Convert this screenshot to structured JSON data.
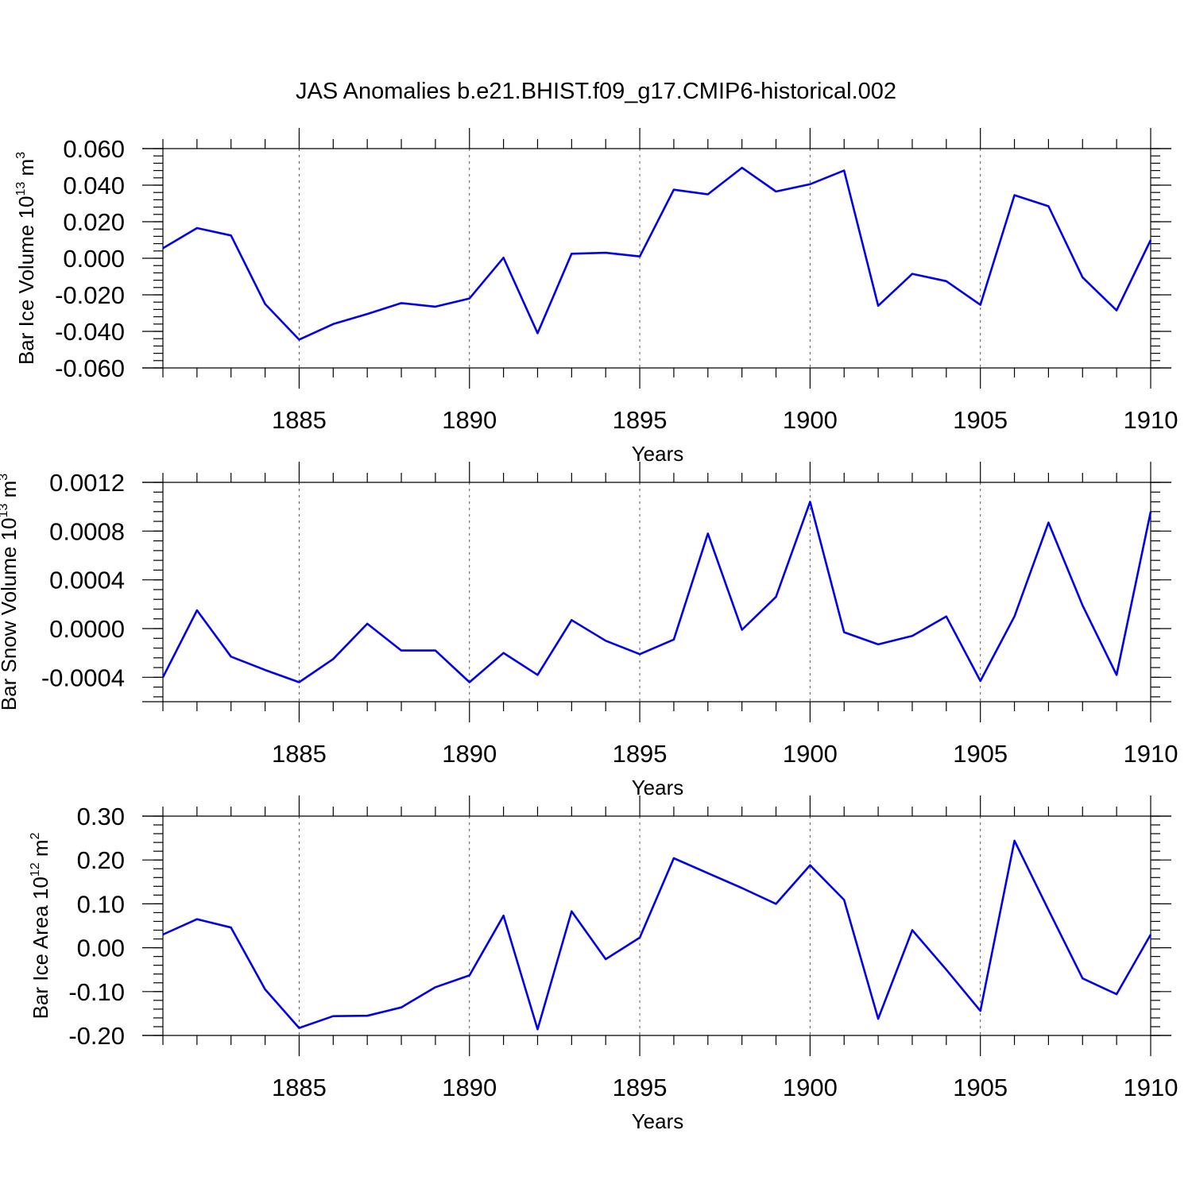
{
  "title": "JAS Anomalies b.e21.BHIST.f09_g17.CMIP6-historical.002",
  "colors": {
    "series": "#0000ee",
    "grid": "#555555",
    "axes": "#000000"
  },
  "chart_data": [
    {
      "type": "line",
      "ylabel_main": "Bar Ice Volume 10",
      "ylabel_exp": "13",
      "ylabel_unit": " m",
      "ylabel_unit_exp": "3",
      "xlabel": "Years",
      "xlim": [
        1881,
        1910
      ],
      "ylim": [
        -0.06,
        0.06
      ],
      "xticks": [
        1885,
        1890,
        1895,
        1900,
        1905,
        1910
      ],
      "xtick_labels": [
        "1885",
        "1890",
        "1895",
        "1900",
        "1905",
        "1910"
      ],
      "yticks": [
        -0.06,
        -0.04,
        -0.02,
        0.0,
        0.02,
        0.04,
        0.06
      ],
      "ytick_labels": [
        "-0.060",
        "-0.040",
        "-0.020",
        "0.000",
        "0.020",
        "0.040",
        "0.060"
      ],
      "grid": "vertical-dashed",
      "x": [
        1881,
        1882,
        1883,
        1884,
        1885,
        1886,
        1887,
        1888,
        1889,
        1890,
        1891,
        1892,
        1893,
        1894,
        1895,
        1896,
        1897,
        1898,
        1899,
        1900,
        1901,
        1902,
        1903,
        1904,
        1905,
        1906,
        1907,
        1908,
        1909,
        1910
      ],
      "values": [
        0.0055,
        0.0165,
        0.0125,
        -0.025,
        -0.0445,
        -0.036,
        -0.0305,
        -0.0245,
        -0.0265,
        -0.022,
        0.0003,
        -0.041,
        0.0025,
        0.003,
        0.001,
        0.0375,
        0.035,
        0.0495,
        0.0365,
        0.0405,
        0.048,
        -0.026,
        -0.0085,
        -0.0125,
        -0.0255,
        0.0345,
        0.0285,
        -0.0105,
        -0.0285,
        0.01
      ]
    },
    {
      "type": "line",
      "ylabel_main": "Bar Snow Volume 10",
      "ylabel_exp": "13",
      "ylabel_unit": " m",
      "ylabel_unit_exp": "3",
      "xlabel": "Years",
      "xlim": [
        1881,
        1910
      ],
      "ylim": [
        -0.0006,
        0.0012
      ],
      "xticks": [
        1885,
        1890,
        1895,
        1900,
        1905,
        1910
      ],
      "xtick_labels": [
        "1885",
        "1890",
        "1895",
        "1900",
        "1905",
        "1910"
      ],
      "yticks": [
        -0.0004,
        0.0,
        0.0004,
        0.0008,
        0.0012
      ],
      "ytick_labels": [
        "-0.0004",
        "0.0000",
        "0.0004",
        "0.0008",
        "0.0012"
      ],
      "grid": "vertical-dashed",
      "x": [
        1881,
        1882,
        1883,
        1884,
        1885,
        1886,
        1887,
        1888,
        1889,
        1890,
        1891,
        1892,
        1893,
        1894,
        1895,
        1896,
        1897,
        1898,
        1899,
        1900,
        1901,
        1902,
        1903,
        1904,
        1905,
        1906,
        1907,
        1908,
        1909,
        1910
      ],
      "values": [
        -0.0004,
        0.00015,
        -0.00023,
        -0.00034,
        -0.00044,
        -0.00025,
        4e-05,
        -0.00018,
        -0.00018,
        -0.00044,
        -0.0002,
        -0.00038,
        7e-05,
        -0.0001,
        -0.00021,
        -9e-05,
        0.00078,
        -1e-05,
        0.00026,
        0.00104,
        -3e-05,
        -0.00013,
        -6e-05,
        0.0001,
        -0.00043,
        0.0001,
        0.00087,
        0.00019,
        -0.00038,
        0.00096
      ]
    },
    {
      "type": "line",
      "ylabel_main": "Bar Ice Area 10",
      "ylabel_exp": "12",
      "ylabel_unit": " m",
      "ylabel_unit_exp": "2",
      "xlabel": "Years",
      "xlim": [
        1881,
        1910
      ],
      "ylim": [
        -0.2,
        0.3
      ],
      "xticks": [
        1885,
        1890,
        1895,
        1900,
        1905,
        1910
      ],
      "xtick_labels": [
        "1885",
        "1890",
        "1895",
        "1900",
        "1905",
        "1910"
      ],
      "yticks": [
        -0.2,
        -0.1,
        0.0,
        0.1,
        0.2,
        0.3
      ],
      "ytick_labels": [
        "-0.20",
        "-0.10",
        "0.00",
        "0.10",
        "0.20",
        "0.30"
      ],
      "grid": "vertical-dashed",
      "x": [
        1881,
        1882,
        1883,
        1884,
        1885,
        1886,
        1887,
        1888,
        1889,
        1890,
        1891,
        1892,
        1893,
        1894,
        1895,
        1896,
        1897,
        1898,
        1899,
        1900,
        1901,
        1902,
        1903,
        1904,
        1905,
        1906,
        1907,
        1908,
        1909,
        1910
      ],
      "values": [
        0.03,
        0.065,
        0.046,
        -0.095,
        -0.183,
        -0.156,
        -0.155,
        -0.136,
        -0.09,
        -0.063,
        0.073,
        -0.186,
        0.083,
        -0.026,
        0.023,
        0.204,
        0.17,
        0.136,
        0.1,
        0.188,
        0.109,
        -0.162,
        0.04,
        -0.05,
        -0.144,
        0.244,
        0.086,
        -0.07,
        -0.106,
        0.03
      ]
    }
  ]
}
